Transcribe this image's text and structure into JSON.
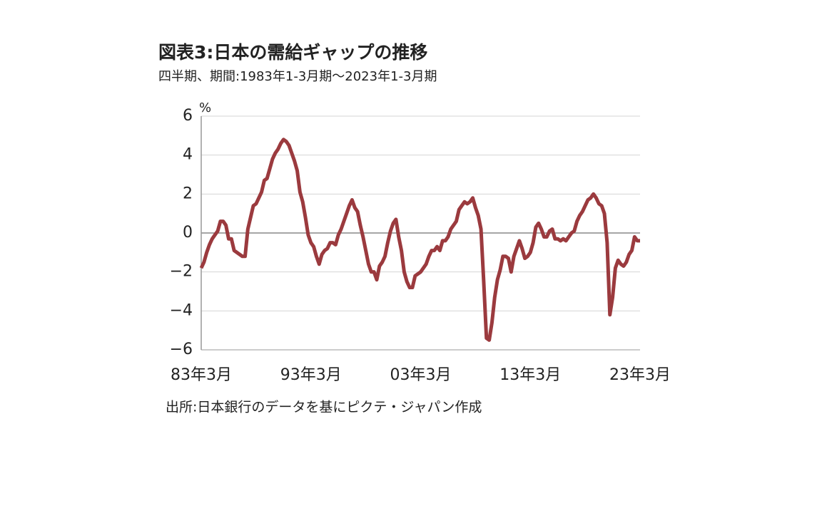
{
  "chart_data": {
    "type": "line",
    "title": "図表3:日本の需給ギャップの推移",
    "subtitle": "四半期、期間:1983年1-3月期～2023年1-3月期",
    "y_label": "%",
    "source": "出所:日本銀行のデータを基にピクテ・ジャパン作成",
    "categories": [
      "83年3月",
      null,
      null,
      null,
      null,
      null,
      null,
      null,
      null,
      null,
      null,
      null,
      null,
      null,
      null,
      null,
      null,
      null,
      null,
      null,
      null,
      null,
      null,
      null,
      null,
      null,
      null,
      null,
      null,
      null,
      null,
      null,
      null,
      null,
      null,
      null,
      null,
      null,
      null,
      null,
      "93年3月",
      null,
      null,
      null,
      null,
      null,
      null,
      null,
      null,
      null,
      null,
      null,
      null,
      null,
      null,
      null,
      null,
      null,
      null,
      null,
      null,
      null,
      null,
      null,
      null,
      null,
      null,
      null,
      null,
      null,
      null,
      null,
      null,
      null,
      null,
      null,
      null,
      null,
      null,
      null,
      "03年3月",
      null,
      null,
      null,
      null,
      null,
      null,
      null,
      null,
      null,
      null,
      null,
      null,
      null,
      null,
      null,
      null,
      null,
      null,
      null,
      null,
      null,
      null,
      null,
      null,
      null,
      null,
      null,
      null,
      null,
      null,
      null,
      null,
      null,
      null,
      null,
      null,
      null,
      null,
      null,
      "13年3月",
      null,
      null,
      null,
      null,
      null,
      null,
      null,
      null,
      null,
      null,
      null,
      null,
      null,
      null,
      null,
      null,
      null,
      null,
      null,
      null,
      null,
      null,
      null,
      null,
      null,
      null,
      null,
      null,
      null,
      null,
      null,
      null,
      null,
      null,
      null,
      null,
      null,
      null,
      null,
      "23年3月"
    ],
    "series": [
      {
        "color": "#9b3a3e",
        "values": [
          -1.8,
          -1.5,
          -1.0,
          -0.6,
          -0.3,
          -0.1,
          0.1,
          0.6,
          0.6,
          0.4,
          -0.3,
          -0.3,
          -0.9,
          -1.0,
          -1.1,
          -1.2,
          -1.2,
          0.2,
          0.8,
          1.4,
          1.5,
          1.8,
          2.1,
          2.7,
          2.8,
          3.3,
          3.8,
          4.1,
          4.3,
          4.6,
          4.8,
          4.7,
          4.5,
          4.1,
          3.7,
          3.2,
          2.1,
          1.6,
          0.8,
          -0.1,
          -0.5,
          -0.7,
          -1.2,
          -1.6,
          -1.1,
          -0.9,
          -0.8,
          -0.5,
          -0.5,
          -0.6,
          -0.1,
          0.2,
          0.6,
          1.0,
          1.4,
          1.7,
          1.3,
          1.1,
          0.4,
          -0.2,
          -0.9,
          -1.6,
          -2.0,
          -2.0,
          -2.4,
          -1.7,
          -1.5,
          -1.2,
          -0.5,
          0.1,
          0.5,
          0.7,
          -0.2,
          -0.9,
          -2.0,
          -2.5,
          -2.8,
          -2.8,
          -2.2,
          -2.1,
          -2.0,
          -1.8,
          -1.6,
          -1.2,
          -0.9,
          -0.9,
          -0.7,
          -0.9,
          -0.4,
          -0.4,
          -0.2,
          0.2,
          0.4,
          0.6,
          1.2,
          1.4,
          1.6,
          1.5,
          1.6,
          1.8,
          1.3,
          0.9,
          0.2,
          -2.5,
          -5.4,
          -5.5,
          -4.6,
          -3.3,
          -2.4,
          -1.9,
          -1.2,
          -1.2,
          -1.3,
          -2.0,
          -1.2,
          -0.8,
          -0.4,
          -0.8,
          -1.3,
          -1.2,
          -1.0,
          -0.5,
          0.3,
          0.5,
          0.2,
          -0.2,
          -0.2,
          0.1,
          0.2,
          -0.3,
          -0.3,
          -0.4,
          -0.3,
          -0.4,
          -0.2,
          0.0,
          0.1,
          0.6,
          0.9,
          1.1,
          1.4,
          1.7,
          1.8,
          2.0,
          1.8,
          1.5,
          1.4,
          1.0,
          -0.5,
          -4.2,
          -3.3,
          -1.8,
          -1.4,
          -1.6,
          -1.7,
          -1.5,
          -1.1,
          -0.9,
          -0.2,
          -0.4,
          -0.4
        ]
      }
    ],
    "ylim": [
      -6,
      6
    ],
    "yticks": [
      {
        "value": -6,
        "label": "−6"
      },
      {
        "value": -4,
        "label": "−4"
      },
      {
        "value": -2,
        "label": "−2"
      },
      0,
      2,
      4,
      6
    ],
    "grid": true
  }
}
